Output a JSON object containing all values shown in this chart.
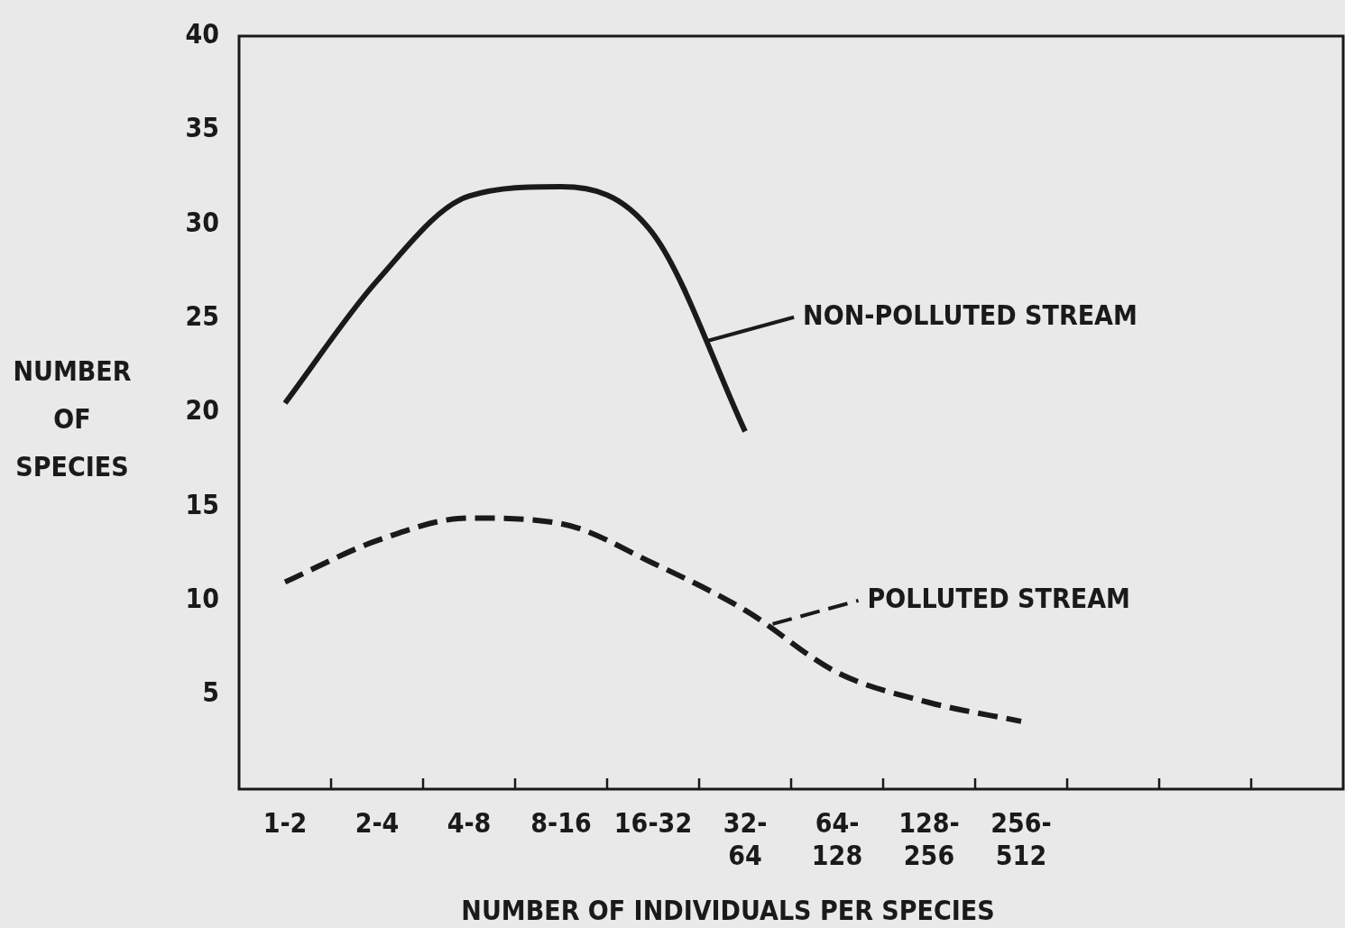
{
  "chart_data": {
    "type": "line",
    "xlabel": "NUMBER OF INDIVIDUALS PER SPECIES",
    "ylabel": "NUMBER OF SPECIES",
    "categories": [
      "1-2",
      "2-4",
      "4-8",
      "8-16",
      "16-32",
      "32-64",
      "64-128",
      "128-256",
      "256-512",
      null,
      null,
      null
    ],
    "ylim": [
      0,
      40
    ],
    "yticks": [
      5,
      10,
      15,
      20,
      25,
      30,
      35,
      40
    ],
    "marker": "none",
    "legend": "right",
    "series": [
      {
        "name": "NON-POLLUTED STREAM",
        "color": "#1a1a1a",
        "line_style": "solid",
        "values": [
          20.5,
          27,
          31.5,
          32,
          29.5,
          19,
          null,
          null,
          null,
          null,
          null,
          null
        ]
      },
      {
        "name": "POLLUTED STREAM",
        "color": "#1a1a1a",
        "line_style": "dashed",
        "values": [
          11,
          13.2,
          14.4,
          14.1,
          12,
          9.5,
          6.2,
          4.6,
          3.6,
          null,
          null,
          null
        ]
      }
    ]
  }
}
